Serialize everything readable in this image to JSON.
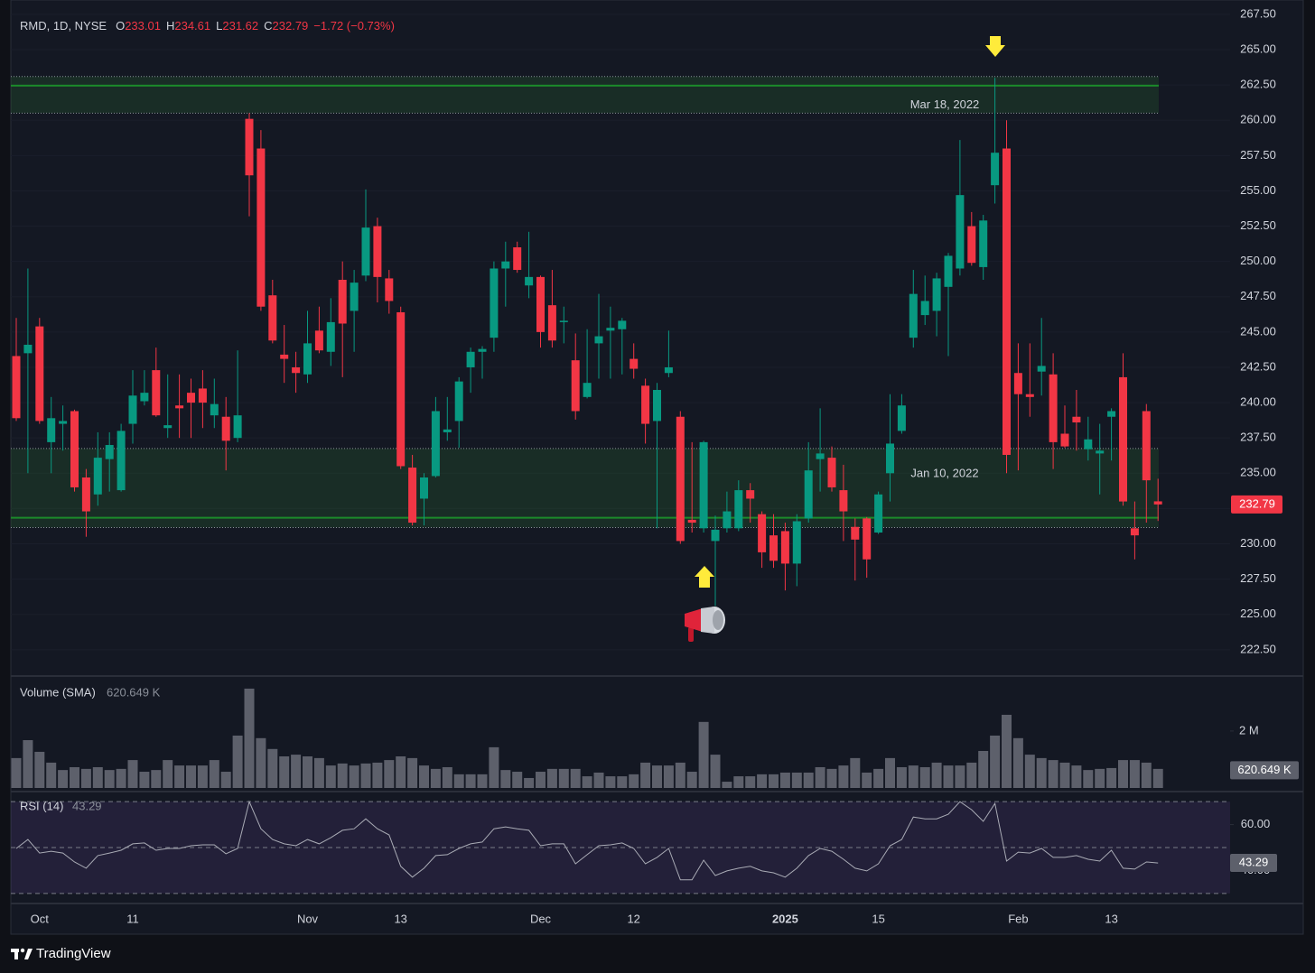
{
  "chart_data": {
    "type": "candlestick",
    "title": "RMD, 1D, NYSE",
    "ohlc_labels": [
      "O",
      "H",
      "L",
      "C"
    ],
    "change_label": "−1.72 (−0.73%)",
    "up_color": "#089981",
    "down_color": "#f23645",
    "categories": [
      null,
      null,
      "Oct",
      null,
      null,
      null,
      null,
      null,
      null,
      null,
      "11",
      null,
      null,
      null,
      null,
      null,
      null,
      null,
      null,
      null,
      null,
      null,
      null,
      null,
      null,
      "Nov",
      null,
      null,
      null,
      null,
      null,
      null,
      null,
      "13",
      null,
      null,
      null,
      null,
      null,
      null,
      null,
      null,
      null,
      null,
      null,
      "Dec",
      null,
      null,
      null,
      null,
      null,
      null,
      null,
      "12",
      null,
      null,
      null,
      null,
      null,
      null,
      null,
      null,
      null,
      null,
      null,
      null,
      "2025",
      null,
      null,
      null,
      null,
      null,
      null,
      null,
      "15",
      null,
      null,
      null,
      null,
      null,
      null,
      null,
      null,
      null,
      null,
      null,
      "Feb",
      null,
      null,
      null,
      null,
      null,
      null,
      null,
      "13",
      null,
      null,
      null,
      null
    ],
    "open": [
      243.3,
      243.5,
      245.4,
      237.2,
      238.5,
      239.4,
      234.7,
      233.5,
      236.0,
      233.8,
      238.5,
      240.1,
      242.3,
      238.2,
      239.8,
      240.7,
      241.0,
      239.1,
      239.0,
      237.5,
      260.1,
      258.0,
      247.6,
      243.4,
      242.5,
      242.0,
      245.1,
      243.6,
      248.7,
      246.5,
      249.0,
      252.5,
      248.8,
      246.4,
      235.4,
      233.2,
      234.8,
      237.9,
      238.7,
      242.5,
      243.6,
      244.6,
      249.5,
      251.0,
      248.3,
      248.9,
      246.9,
      245.7,
      243.0,
      240.4,
      244.2,
      245.1,
      245.2,
      243.1,
      241.2,
      238.7,
      242.1,
      239.0,
      231.7,
      231.1,
      230.2,
      231.1,
      231.1,
      233.8,
      232.1,
      230.6,
      230.9,
      228.6,
      231.8,
      236.0,
      236.1,
      233.8,
      231.2,
      231.8,
      230.8,
      235.0,
      238.0,
      244.6,
      246.2,
      246.5,
      248.2,
      249.5,
      252.5,
      249.6,
      255.4,
      258.0,
      242.1,
      240.6,
      242.2,
      242.0,
      237.8,
      239.0,
      236.7,
      236.4,
      239.0,
      241.8,
      231.1,
      239.4,
      233.01
    ],
    "high": [
      246.0,
      249.5,
      246.0,
      240.4,
      239.8,
      239.5,
      235.3,
      237.9,
      237.9,
      238.5,
      242.3,
      242.3,
      243.9,
      242.0,
      242.0,
      241.7,
      242.3,
      241.7,
      240.4,
      243.7,
      260.5,
      259.3,
      248.7,
      245.5,
      243.6,
      246.5,
      246.8,
      247.4,
      250.0,
      249.4,
      255.1,
      253.1,
      249.4,
      246.8,
      236.3,
      235.0,
      240.4,
      240.4,
      241.8,
      243.9,
      244.0,
      250.0,
      251.4,
      251.4,
      252.1,
      249.0,
      249.4,
      246.8,
      244.9,
      245.2,
      247.7,
      246.8,
      246.0,
      244.2,
      241.7,
      241.4,
      245.1,
      239.4,
      237.2,
      237.3,
      232.0,
      233.7,
      234.5,
      234.3,
      232.3,
      232.1,
      231.5,
      232.1,
      237.2,
      239.6,
      236.9,
      235.6,
      231.8,
      231.9,
      233.7,
      240.6,
      240.6,
      249.4,
      249.0,
      249.2,
      250.6,
      258.6,
      253.5,
      253.3,
      263.0,
      260.0,
      244.2,
      244.2,
      246.0,
      243.5,
      239.8,
      240.9,
      239.0,
      238.5,
      239.6,
      243.5,
      233.0,
      239.9,
      234.61
    ],
    "low": [
      238.7,
      235.0,
      238.5,
      235.0,
      236.6,
      233.7,
      230.5,
      232.7,
      233.7,
      233.7,
      237.1,
      239.8,
      239.0,
      237.5,
      237.5,
      237.5,
      238.2,
      238.2,
      235.2,
      237.2,
      253.2,
      246.5,
      244.2,
      241.4,
      240.7,
      241.4,
      243.5,
      242.6,
      241.8,
      243.6,
      248.6,
      247.1,
      246.3,
      235.3,
      231.3,
      231.3,
      234.7,
      237.3,
      236.8,
      240.7,
      241.7,
      243.6,
      246.8,
      249.2,
      247.4,
      243.9,
      243.9,
      244.2,
      238.8,
      240.3,
      241.7,
      241.7,
      242.0,
      241.7,
      237.1,
      231.1,
      241.8,
      230.0,
      230.8,
      230.8,
      225.6,
      230.8,
      230.9,
      231.5,
      228.3,
      228.3,
      226.7,
      227.0,
      231.5,
      233.7,
      233.7,
      230.2,
      227.4,
      227.6,
      230.7,
      233.0,
      237.8,
      243.9,
      245.5,
      244.7,
      243.3,
      249.0,
      249.7,
      248.7,
      254.1,
      235.0,
      235.2,
      239.0,
      240.5,
      235.3,
      236.8,
      236.6,
      235.9,
      233.5,
      235.9,
      232.7,
      228.9,
      231.5,
      231.62
    ],
    "close": [
      238.9,
      244.1,
      238.7,
      238.9,
      238.7,
      234.0,
      232.3,
      236.1,
      237.0,
      238.0,
      240.5,
      240.7,
      239.1,
      238.4,
      239.6,
      240.0,
      240.0,
      239.9,
      237.3,
      239.1,
      256.1,
      246.8,
      244.4,
      243.1,
      242.1,
      244.2,
      243.7,
      245.7,
      245.6,
      248.5,
      252.4,
      248.9,
      247.2,
      235.5,
      231.5,
      234.7,
      239.4,
      238.1,
      241.5,
      243.6,
      243.8,
      249.5,
      250.0,
      249.4,
      248.9,
      245.0,
      244.4,
      245.8,
      239.4,
      241.4,
      244.7,
      245.3,
      245.8,
      242.4,
      238.5,
      240.9,
      242.5,
      230.2,
      231.5,
      237.2,
      231.0,
      232.3,
      233.8,
      233.2,
      229.4,
      228.8,
      228.6,
      231.6,
      235.2,
      236.4,
      234.0,
      232.3,
      230.3,
      228.9,
      233.5,
      237.1,
      239.8,
      247.7,
      247.2,
      248.8,
      250.4,
      254.7,
      249.9,
      252.9,
      257.7,
      236.3,
      240.6,
      240.4,
      242.6,
      237.2,
      236.9,
      238.6,
      237.4,
      236.6,
      239.4,
      233.0,
      230.6,
      234.5,
      232.79
    ],
    "ylim": [
      220.7,
      267.75
    ],
    "yticks": [
      {
        "value": 222.5,
        "label": "222.50"
      },
      {
        "value": 225,
        "label": "225.00"
      },
      {
        "value": 227.5,
        "label": "227.50"
      },
      {
        "value": 230,
        "label": "230.00"
      },
      {
        "value": 232.5,
        "label": "232.50"
      },
      {
        "value": 235,
        "label": "235.00"
      },
      {
        "value": 237.5,
        "label": "237.50"
      },
      {
        "value": 240,
        "label": "240.00"
      },
      {
        "value": 242.5,
        "label": "242.50"
      },
      {
        "value": 245,
        "label": "245.00"
      },
      {
        "value": 247.5,
        "label": "247.50"
      },
      {
        "value": 250,
        "label": "250.00"
      },
      {
        "value": 252.5,
        "label": "252.50"
      },
      {
        "value": 255,
        "label": "255.00"
      },
      {
        "value": 257.5,
        "label": "257.50"
      },
      {
        "value": 260,
        "label": "260.00"
      },
      {
        "value": 262.5,
        "label": "262.50"
      },
      {
        "value": 265,
        "label": "265.00"
      },
      {
        "value": 267.5,
        "label": "267.50"
      }
    ],
    "grid": true,
    "zones": [
      {
        "label": "Mar 18, 2022",
        "top": 263.1,
        "bottom": 260.5,
        "level": 262.45
      },
      {
        "label": "Jan 10, 2022",
        "top": 236.75,
        "bottom": 231.15,
        "level": 231.85
      }
    ],
    "volume": {
      "label": "Volume (SMA)",
      "sma": 0.620649,
      "sma_label": "620.649 K",
      "color": "#5d606b",
      "ylim": [
        0,
        3.9
      ],
      "yticks": [
        {
          "value": 2,
          "label": "2 M"
        }
      ],
      "values": [
        1.05,
        1.68,
        1.27,
        0.89,
        0.63,
        0.73,
        0.67,
        0.73,
        0.63,
        0.67,
        0.98,
        0.57,
        0.63,
        0.98,
        0.79,
        0.79,
        0.79,
        0.98,
        0.57,
        1.84,
        3.49,
        1.75,
        1.37,
        1.11,
        1.17,
        1.11,
        1.05,
        0.79,
        0.86,
        0.79,
        0.86,
        0.89,
        0.98,
        1.11,
        1.05,
        0.79,
        0.67,
        0.73,
        0.48,
        0.48,
        0.48,
        1.43,
        0.63,
        0.57,
        0.35,
        0.57,
        0.67,
        0.67,
        0.67,
        0.41,
        0.54,
        0.41,
        0.41,
        0.48,
        0.89,
        0.79,
        0.79,
        0.89,
        0.57,
        2.32,
        1.17,
        0.22,
        0.41,
        0.41,
        0.48,
        0.48,
        0.54,
        0.54,
        0.54,
        0.73,
        0.67,
        0.79,
        1.05,
        0.54,
        0.67,
        1.05,
        0.73,
        0.79,
        0.73,
        0.89,
        0.79,
        0.79,
        0.89,
        1.3,
        1.84,
        2.57,
        1.75,
        1.17,
        1.05,
        0.98,
        0.89,
        0.79,
        0.63,
        0.67,
        0.7,
        0.98,
        0.98,
        0.89,
        0.67
      ]
    },
    "rsi": {
      "label": "RSI (14)",
      "color": "#a9abb5",
      "levels": [
        70,
        50,
        30
      ],
      "ylim": [
        26,
        74
      ],
      "yticks": [
        {
          "value": 60,
          "label": "60.00"
        },
        {
          "value": 40,
          "label": "40.00"
        }
      ],
      "values": [
        49.6,
        53.5,
        47.6,
        48.4,
        47.6,
        43.7,
        41.0,
        46.5,
        47.6,
        48.8,
        51.6,
        52.0,
        48.8,
        49.6,
        49.6,
        50.8,
        51.2,
        51.2,
        47.3,
        49.6,
        70.0,
        58.2,
        53.5,
        51.6,
        50.8,
        53.5,
        51.6,
        54.3,
        57.5,
        58.2,
        62.5,
        58.2,
        55.5,
        41.8,
        37.1,
        41.0,
        46.5,
        46.9,
        49.6,
        51.6,
        52.4,
        58.2,
        59.0,
        58.2,
        57.5,
        50.8,
        51.6,
        51.6,
        42.9,
        46.9,
        50.8,
        51.2,
        52.0,
        49.6,
        42.9,
        45.7,
        49.6,
        35.9,
        35.9,
        44.5,
        37.8,
        39.8,
        41.0,
        41.8,
        39.8,
        39.0,
        37.1,
        41.0,
        46.5,
        49.6,
        48.4,
        44.9,
        41.0,
        39.8,
        42.9,
        50.8,
        53.5,
        63.3,
        62.5,
        62.5,
        64.5,
        70.0,
        66.5,
        61.4,
        69.2,
        44.1,
        48.0,
        47.6,
        49.6,
        45.7,
        45.7,
        46.5,
        44.9,
        44.1,
        48.8,
        41.0,
        40.6,
        43.7,
        43.29
      ]
    }
  },
  "brand": "TradingView"
}
